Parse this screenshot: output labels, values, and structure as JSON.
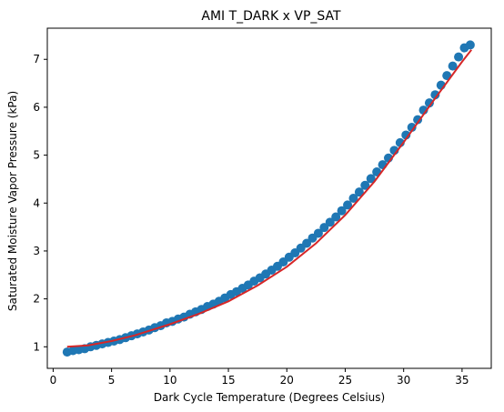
{
  "chart_data": {
    "type": "scatter",
    "title": "AMI T_DARK x VP_SAT",
    "xlabel": "Dark Cycle Temperature (Degrees Celsius)",
    "ylabel": "Saturated Moisture Vapor Pressure (kPa)",
    "xlim": [
      -0.5,
      37.5
    ],
    "ylim": [
      0.55,
      7.65
    ],
    "xticks": [
      0,
      5,
      10,
      15,
      20,
      25,
      30,
      35
    ],
    "yticks": [
      1,
      2,
      3,
      4,
      5,
      6,
      7
    ],
    "grid": false,
    "colors": {
      "points": "#1f77b4",
      "fit": "#d62728"
    },
    "series": [
      {
        "type": "scatter",
        "x": [
          1.2,
          1.7,
          2.2,
          2.7,
          3.2,
          3.7,
          4.2,
          4.7,
          5.2,
          5.7,
          6.2,
          6.7,
          7.2,
          7.7,
          8.2,
          8.7,
          9.2,
          9.7,
          10.2,
          10.7,
          11.2,
          11.7,
          12.2,
          12.7,
          13.2,
          13.7,
          14.2,
          14.7,
          15.2,
          15.7,
          16.2,
          16.7,
          17.2,
          17.7,
          18.2,
          18.7,
          19.2,
          19.7,
          20.2,
          20.7,
          21.2,
          21.7,
          22.2,
          22.7,
          23.2,
          23.7,
          24.2,
          24.7,
          25.2,
          25.7,
          26.2,
          26.7,
          27.2,
          27.7,
          28.2,
          28.7,
          29.2,
          29.7,
          30.2,
          30.7,
          31.2,
          31.7,
          32.2,
          32.7,
          33.2,
          33.7,
          34.2,
          34.7,
          35.2,
          35.7
        ],
        "y": [
          0.89,
          0.92,
          0.94,
          0.96,
          1.0,
          1.03,
          1.06,
          1.09,
          1.12,
          1.15,
          1.19,
          1.23,
          1.27,
          1.31,
          1.35,
          1.4,
          1.44,
          1.5,
          1.53,
          1.58,
          1.62,
          1.68,
          1.73,
          1.78,
          1.84,
          1.89,
          1.95,
          2.02,
          2.09,
          2.15,
          2.22,
          2.29,
          2.37,
          2.44,
          2.52,
          2.6,
          2.68,
          2.77,
          2.87,
          2.96,
          3.06,
          3.16,
          3.27,
          3.37,
          3.49,
          3.6,
          3.71,
          3.84,
          3.96,
          4.1,
          4.23,
          4.37,
          4.51,
          4.65,
          4.8,
          4.94,
          5.1,
          5.26,
          5.42,
          5.58,
          5.74,
          5.94,
          6.09,
          6.26,
          6.46,
          6.66,
          6.86,
          7.05,
          7.24,
          7.3
        ]
      },
      {
        "type": "line",
        "x": [
          1.2,
          3,
          5,
          7,
          10,
          12.5,
          15,
          17.5,
          20,
          22.5,
          25,
          27.5,
          30,
          32.5,
          35,
          35.8
        ],
        "y": [
          1.0,
          1.03,
          1.12,
          1.24,
          1.47,
          1.69,
          1.95,
          2.28,
          2.67,
          3.16,
          3.75,
          4.45,
          5.27,
          6.12,
          6.95,
          7.2
        ]
      }
    ]
  }
}
